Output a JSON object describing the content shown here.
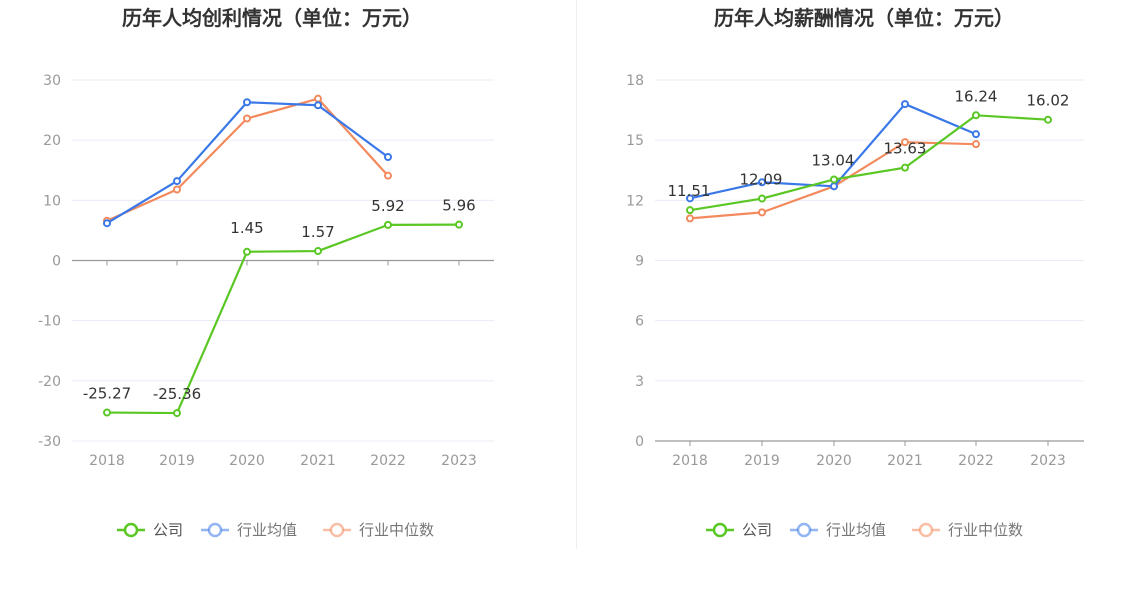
{
  "colors": {
    "company": "#5ac724",
    "industry_avg": "#3b78e7",
    "industry_median": "#f28a5d",
    "grid": "#e8ecf6",
    "axis": "#999999"
  },
  "legend": {
    "company": "公司",
    "industry_avg": "行业均值",
    "industry_median": "行业中位数"
  },
  "chart_data": [
    {
      "type": "line",
      "title": "历年人均创利情况（单位：万元）",
      "categories": [
        "2018",
        "2019",
        "2020",
        "2021",
        "2022",
        "2023"
      ],
      "y_ticks": [
        "30",
        "20",
        "10",
        "0",
        "-10",
        "-20",
        "-30"
      ],
      "ylim": [
        -30,
        30
      ],
      "series": [
        {
          "name": "公司",
          "values": [
            -25.27,
            -25.36,
            1.45,
            1.57,
            5.92,
            5.96
          ],
          "labels": [
            "-25.27",
            "-25.36",
            "1.45",
            "1.57",
            "5.92",
            "5.96"
          ]
        },
        {
          "name": "行业均值",
          "values": [
            6.2,
            13.2,
            26.3,
            25.8,
            17.2,
            null
          ]
        },
        {
          "name": "行业中位数",
          "values": [
            6.6,
            11.8,
            23.6,
            26.9,
            14.1,
            null
          ]
        }
      ]
    },
    {
      "type": "line",
      "title": "历年人均薪酬情况（单位：万元）",
      "categories": [
        "2018",
        "2019",
        "2020",
        "2021",
        "2022",
        "2023"
      ],
      "y_ticks": [
        "18",
        "15",
        "12",
        "9",
        "6",
        "3",
        "0"
      ],
      "ylim": [
        0,
        18
      ],
      "series": [
        {
          "name": "公司",
          "values": [
            11.51,
            12.09,
            13.04,
            13.63,
            16.24,
            16.02
          ],
          "labels": [
            "11.51",
            "12.09",
            "13.04",
            "13.63",
            "16.24",
            "16.02"
          ]
        },
        {
          "name": "行业均值",
          "values": [
            12.1,
            12.9,
            12.7,
            16.8,
            15.3,
            null
          ]
        },
        {
          "name": "行业中位数",
          "values": [
            11.1,
            11.4,
            12.7,
            14.9,
            14.8,
            null
          ]
        }
      ]
    }
  ]
}
